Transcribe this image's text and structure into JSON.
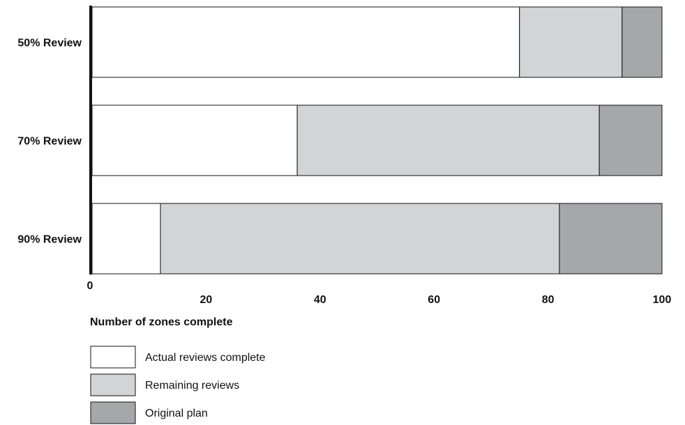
{
  "chart_data": {
    "type": "bar",
    "orientation": "horizontal",
    "stacked": true,
    "categories": [
      "50% Review",
      "70% Review",
      "90% Review"
    ],
    "series": [
      {
        "name": "Actual reviews complete",
        "values": [
          75,
          36,
          12
        ],
        "color": "#ffffff"
      },
      {
        "name": "Remaining reviews",
        "values": [
          18,
          53,
          70
        ],
        "color": "#d3d4d6"
      },
      {
        "name": "Original plan",
        "values": [
          7,
          11,
          18
        ],
        "color": "#a6a7aa"
      }
    ],
    "xlabel": "Number of zones complete",
    "ylabel": "",
    "title": "",
    "xlim": [
      0,
      100
    ],
    "xticks": [
      "0",
      "20",
      "40",
      "60",
      "80",
      "100"
    ],
    "xtick_values": [
      0,
      20,
      40,
      60,
      80,
      100
    ],
    "grid": false,
    "legend_position": "bottom-left"
  }
}
